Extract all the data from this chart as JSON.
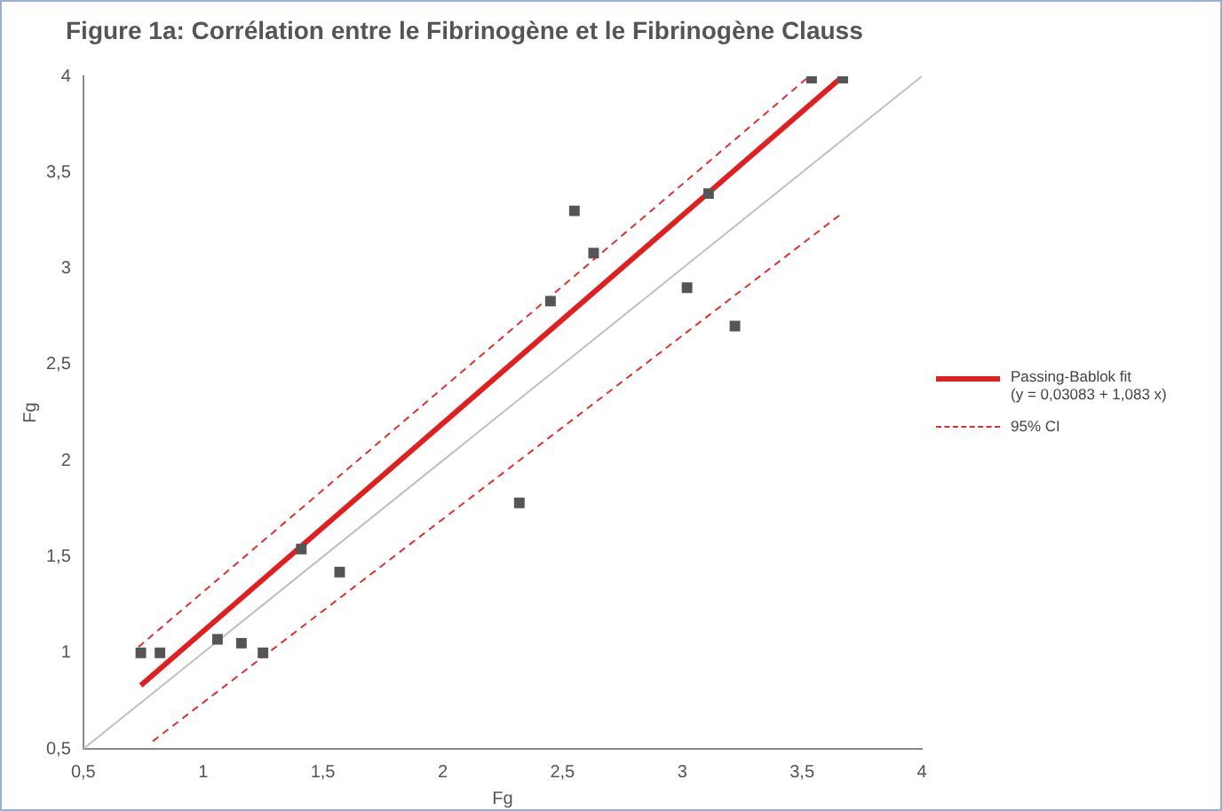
{
  "chart_data": {
    "type": "scatter",
    "title": "Figure 1a: Corrélation entre le Fibrinogène et le Fibrinogène Clauss",
    "xlabel": "Fg",
    "ylabel": "Fg",
    "xlim": [
      0.5,
      4
    ],
    "ylim": [
      0.5,
      4
    ],
    "xticks": [
      {
        "value": 0.5,
        "label": "0,5"
      },
      1,
      {
        "value": 1.5,
        "label": "1,5"
      },
      2,
      {
        "value": 2.5,
        "label": "2,5"
      },
      3,
      {
        "value": 3.5,
        "label": "3,5"
      },
      4
    ],
    "yticks": [
      {
        "value": 0.5,
        "label": "0,5"
      },
      1,
      {
        "value": 1.5,
        "label": "1,5"
      },
      2,
      {
        "value": 2.5,
        "label": "2,5"
      },
      3,
      {
        "value": 3.5,
        "label": "3,5"
      },
      4
    ],
    "grid": false,
    "legend": "right",
    "series": [
      {
        "type": "line",
        "color": "#c0c0c0",
        "x": [
          0.5,
          4
        ],
        "values": [
          0.5,
          4
        ],
        "line_style": "solid",
        "marker": "none"
      },
      {
        "type": "line",
        "name": "95% CI",
        "color": "#e03030",
        "x": [
          0.73,
          3.53
        ],
        "values": [
          1.03,
          4.0
        ],
        "line_style": "dashed",
        "marker": "none"
      },
      {
        "type": "line",
        "color": "#e03030",
        "x": [
          0.79,
          3.67
        ],
        "values": [
          0.54,
          3.29
        ],
        "line_style": "dashed",
        "marker": "none"
      },
      {
        "type": "line",
        "name": "Passing-Bablok fit\n(y = 0,03083 + 1,083 x)",
        "color": "#e02020",
        "x": [
          0.74,
          3.67
        ],
        "values": [
          0.83,
          4.0
        ],
        "line_style": "solid",
        "marker": "none"
      },
      {
        "color": "#555555",
        "marker": "square",
        "x": [
          0.74,
          0.82,
          1.06,
          1.16,
          1.25,
          1.41,
          1.57,
          2.32,
          2.45,
          2.55,
          2.63,
          3.02,
          3.11,
          3.22,
          3.54,
          3.67
        ],
        "values": [
          1.0,
          1.0,
          1.07,
          1.05,
          1.0,
          1.54,
          1.42,
          1.78,
          2.83,
          3.3,
          3.08,
          2.9,
          3.39,
          2.7,
          3.99,
          3.99
        ]
      }
    ]
  }
}
